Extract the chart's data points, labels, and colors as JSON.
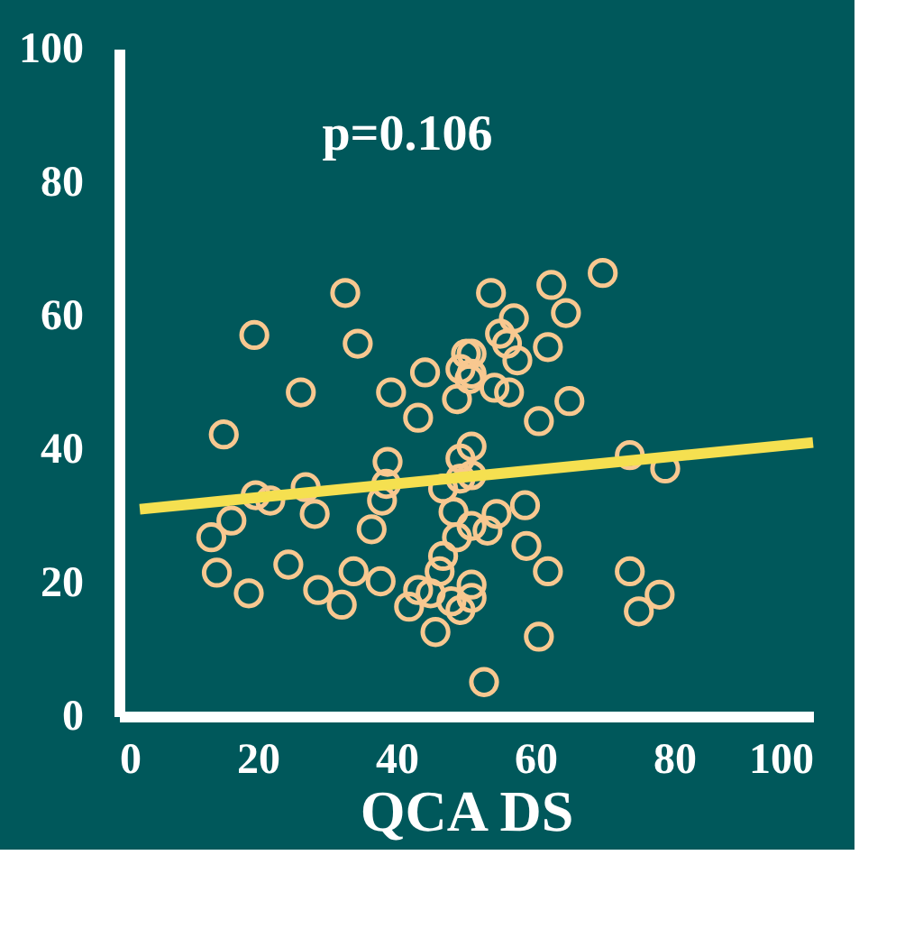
{
  "chart_data": {
    "type": "scatter",
    "xlabel": "QCA DS",
    "annotations": [
      "p=0.106"
    ],
    "xlim": [
      0,
      100
    ],
    "ylim": [
      0,
      100
    ],
    "xticks": [
      0,
      20,
      40,
      60,
      80,
      100
    ],
    "yticks": [
      0,
      20,
      40,
      60,
      80,
      100
    ],
    "grid": false,
    "series": [
      {
        "color": "#f8c890",
        "marker": "circle",
        "x": [
          69.7,
          62.3,
          53.6,
          56.9,
          64.4,
          54.9,
          55.9,
          57.4,
          61.8,
          50.8,
          50.8,
          54.1,
          56.2,
          64.9,
          60.5,
          50.8,
          73.6,
          78.7,
          32.6,
          19.5,
          34.4,
          26.2,
          15.1,
          39.2,
          44.1,
          50.0,
          49.2,
          50.5,
          48.7,
          43.1,
          49.2,
          38.7,
          19.7,
          21.8,
          26.9,
          28.2,
          38.5,
          37.9,
          16.2,
          13.3,
          36.4,
          46.7,
          49.2,
          50.8,
          48.2,
          50.8,
          48.7,
          53.1,
          54.4,
          14.1,
          24.4,
          18.7,
          28.7,
          32.1,
          33.8,
          37.7,
          46.7,
          46.2,
          43.1,
          41.8,
          44.9,
          47.9,
          50.8,
          50.8,
          49.2,
          45.6,
          52.6,
          58.5,
          58.7,
          61.8,
          73.6,
          77.9,
          74.9,
          60.5
        ],
        "values": [
          66.4,
          64.6,
          63.4,
          59.6,
          60.4,
          57.3,
          55.8,
          53.3,
          55.3,
          54.3,
          51.3,
          49.2,
          48.5,
          47.2,
          44.2,
          40.4,
          39.1,
          37.1,
          63.4,
          57.1,
          55.8,
          48.5,
          42.2,
          48.5,
          51.5,
          54.3,
          52.0,
          50.5,
          47.5,
          44.7,
          38.6,
          38.1,
          33.1,
          32.3,
          34.3,
          30.3,
          34.8,
          32.3,
          29.3,
          26.8,
          28.0,
          34.1,
          35.6,
          36.1,
          30.6,
          28.5,
          26.8,
          27.8,
          30.3,
          21.5,
          22.7,
          18.4,
          18.9,
          16.7,
          21.7,
          20.2,
          24.0,
          21.7,
          18.9,
          16.4,
          18.4,
          17.2,
          19.7,
          17.7,
          15.9,
          12.6,
          5.1,
          31.6,
          25.5,
          21.7,
          21.7,
          18.2,
          15.7,
          11.9
        ]
      },
      {
        "type": "line",
        "color": "#f5e050",
        "x": [
          3,
          100
        ],
        "values": [
          31,
          41
        ]
      }
    ]
  }
}
